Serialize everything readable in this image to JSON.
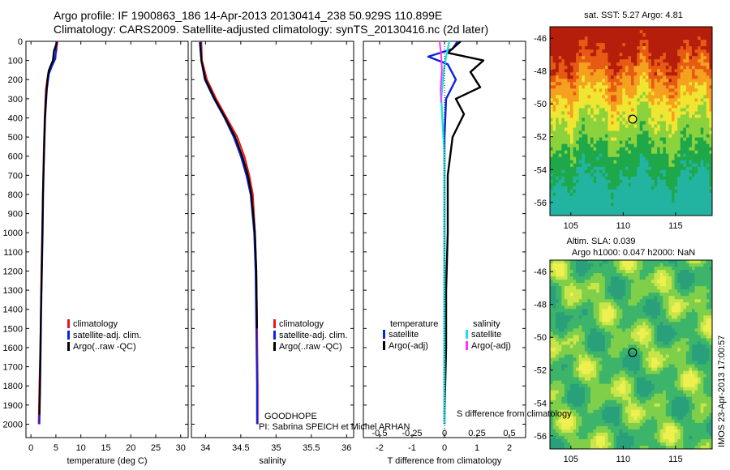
{
  "header": {
    "line1": "Argo profile: IF 1900863_186 14-Apr-2013 20130414_238 50.929S 110.899E",
    "line2": "Climatology: CARS2009. Satellite-adjusted climatology: synTS_20130416.nc (2d later)"
  },
  "colors": {
    "climatology": "#e41a1a",
    "satellite": "#0a22e6",
    "argo": "#000000",
    "sat_salinity": "#22e0e0",
    "argo_salinity": "#ff33ff"
  },
  "chart_data": [
    {
      "type": "line",
      "panel": "temperature",
      "xlabel": "temperature (deg C)",
      "ylabel": "",
      "xlim": [
        -1,
        31.5
      ],
      "ylim": [
        2070,
        0
      ],
      "xticks": [
        0,
        5,
        10,
        15,
        20,
        25,
        30
      ],
      "yticks": [
        0,
        100,
        200,
        300,
        400,
        500,
        600,
        700,
        800,
        900,
        1000,
        1100,
        1200,
        1300,
        1400,
        1500,
        1600,
        1700,
        1800,
        1900,
        2000
      ],
      "legend": [
        "climatology",
        "satellite-adj. clim.",
        "Argo(..raw -QC)"
      ],
      "series": [
        {
          "name": "climatology",
          "x": [
            5.3,
            5.1,
            4.6,
            3.5,
            3.0,
            2.75,
            2.55,
            2.4,
            2.25,
            2.1,
            2.0,
            1.9,
            1.7,
            1.55
          ],
          "y": [
            0,
            50,
            100,
            160,
            250,
            400,
            600,
            800,
            1000,
            1200,
            1400,
            1600,
            1800,
            2000
          ]
        },
        {
          "name": "satellite-adj. clim.",
          "x": [
            5.1,
            5.0,
            4.9,
            4.2,
            3.6,
            3.2,
            2.85,
            2.6,
            2.45,
            2.35,
            2.2,
            2.05,
            1.95,
            1.85,
            1.7
          ],
          "y": [
            0,
            50,
            90,
            130,
            170,
            250,
            400,
            600,
            800,
            1000,
            1200,
            1400,
            1600,
            1800,
            2000
          ]
        },
        {
          "name": "Argo(..raw -QC)",
          "x": [
            5.2,
            4.6,
            4.4,
            3.6,
            3.3,
            3.0,
            2.8,
            2.6,
            2.4,
            2.3,
            2.15,
            2.0,
            1.9,
            1.8,
            1.7
          ],
          "y": [
            5,
            50,
            100,
            150,
            200,
            300,
            400,
            600,
            800,
            1000,
            1200,
            1400,
            1600,
            1800,
            1950
          ]
        }
      ]
    },
    {
      "type": "line",
      "panel": "salinity",
      "xlabel": "salinity",
      "xlim": [
        33.8,
        36.1
      ],
      "ylim": [
        2070,
        0
      ],
      "xticks": [
        34,
        34.5,
        35,
        35.5,
        36
      ],
      "legend": [
        "climatology",
        "satellite-adj. clim.",
        "Argo(..raw -QC)"
      ],
      "series": [
        {
          "name": "climatology",
          "x": [
            33.94,
            33.95,
            34.02,
            34.15,
            34.3,
            34.45,
            34.55,
            34.62,
            34.67,
            34.7,
            34.72,
            34.73,
            34.74,
            34.74
          ],
          "y": [
            0,
            100,
            200,
            300,
            400,
            500,
            600,
            700,
            800,
            1000,
            1200,
            1500,
            1800,
            2000
          ]
        },
        {
          "name": "satellite-adj. clim.",
          "x": [
            33.93,
            33.94,
            33.99,
            34.12,
            34.27,
            34.4,
            34.5,
            34.58,
            34.64,
            34.69,
            34.71,
            34.72,
            34.73,
            34.73
          ],
          "y": [
            0,
            100,
            200,
            300,
            400,
            500,
            600,
            700,
            800,
            1000,
            1200,
            1500,
            1800,
            2000
          ]
        },
        {
          "name": "Argo(..raw -QC)",
          "x": [
            33.92,
            33.94,
            34.0,
            34.13,
            34.28,
            34.42,
            34.52,
            34.6,
            34.65,
            34.7,
            34.72,
            34.73
          ],
          "y": [
            5,
            100,
            200,
            300,
            400,
            500,
            600,
            700,
            800,
            1000,
            1200,
            1500
          ]
        }
      ],
      "annotations": [
        "GOODHOPE",
        "PI: Sabrina SPEICH et Michel ARHAN"
      ]
    },
    {
      "type": "line",
      "panel": "difference",
      "xlabel": "T difference from climatology",
      "xlim": [
        -2.5,
        2.5
      ],
      "ylim": [
        2070,
        0
      ],
      "xticks": [
        -2,
        -1,
        0,
        1,
        2
      ],
      "top_axis_label": "S difference from climatology",
      "top_ticks": [
        "-0.5",
        "-0.25",
        "0",
        "0.25",
        "0.5"
      ],
      "legend_temperature_title": "temperature",
      "legend_salinity_title": "salinity",
      "legend": [
        "satellite",
        "Argo(-adj)",
        "satellite",
        "Argo(-adj)"
      ],
      "series": [
        {
          "name": "satellite",
          "x": [
            0.4,
            0.25,
            -0.5,
            0.1,
            0.35,
            0.05,
            0.0,
            0.0,
            0.0,
            0.0,
            0.0
          ],
          "y": [
            0,
            40,
            80,
            120,
            200,
            300,
            500,
            800,
            1200,
            1600,
            2000
          ]
        },
        {
          "name": "Argo(-adj)",
          "x": [
            0.5,
            0.1,
            1.2,
            0.8,
            1.1,
            0.35,
            0.6,
            0.25,
            0.1,
            0.1,
            0.05,
            0.05,
            0.0
          ],
          "y": [
            0,
            60,
            100,
            160,
            240,
            300,
            380,
            500,
            700,
            1000,
            1300,
            1600,
            1950
          ]
        },
        {
          "name": "satellite",
          "x": [
            0.15,
            0.05,
            -0.02,
            -0.1,
            -0.05,
            0.0,
            0.0,
            0.0,
            0.0
          ],
          "y": [
            0,
            80,
            150,
            300,
            450,
            600,
            1000,
            1500,
            2000
          ]
        },
        {
          "name": "Argo(-adj)",
          "x": [
            -0.15,
            -0.1,
            -0.08,
            -0.12,
            -0.1
          ],
          "y": [
            0,
            80,
            150,
            250,
            320
          ]
        }
      ]
    }
  ],
  "maps": {
    "sst": {
      "title": "sat. SST: 5.27 Argo: 4.81",
      "xticks": [
        "105",
        "110",
        "115"
      ],
      "yticks": [
        "-46",
        "-48",
        "-50",
        "-52",
        "-54",
        "-56"
      ]
    },
    "sla": {
      "title_line1": "Altim. SLA: 0.039",
      "title_line2": "Argo h1000: 0.047 h2000: NaN",
      "xticks": [
        "105",
        "110",
        "115"
      ],
      "yticks": [
        "-46",
        "-48",
        "-50",
        "-52",
        "-54",
        "-56"
      ]
    },
    "side_stamp": "IMOS 23-Apr-2013 17:00:57"
  }
}
